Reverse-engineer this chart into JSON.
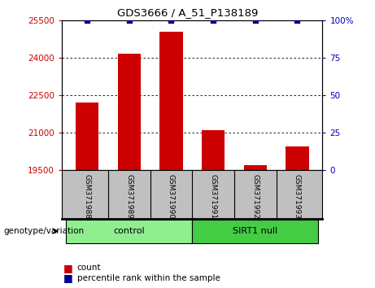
{
  "title": "GDS3666 / A_51_P138189",
  "samples": [
    "GSM371988",
    "GSM371989",
    "GSM371990",
    "GSM371991",
    "GSM371992",
    "GSM371993"
  ],
  "counts": [
    22200,
    24150,
    25050,
    21100,
    19700,
    20450
  ],
  "percentile_ranks": [
    100,
    100,
    100,
    100,
    100,
    100
  ],
  "ylim_left": [
    19500,
    25500
  ],
  "ylim_right": [
    0,
    100
  ],
  "yticks_left": [
    19500,
    21000,
    22500,
    24000,
    25500
  ],
  "yticks_right": [
    0,
    25,
    50,
    75,
    100
  ],
  "groups": [
    {
      "label": "control",
      "indices": [
        0,
        1,
        2
      ],
      "color": "#90EE90"
    },
    {
      "label": "SIRT1 null",
      "indices": [
        3,
        4,
        5
      ],
      "color": "#44CC44"
    }
  ],
  "bar_color": "#CC0000",
  "dot_color": "#00008B",
  "bar_width": 0.55,
  "xlabel_color": "#CC0000",
  "ylabel_right_color": "#0000BB",
  "background_color": "#ffffff",
  "tick_area_color": "#C0C0C0",
  "legend_items": [
    {
      "label": "count",
      "color": "#CC0000"
    },
    {
      "label": "percentile rank within the sample",
      "color": "#00008B"
    }
  ]
}
